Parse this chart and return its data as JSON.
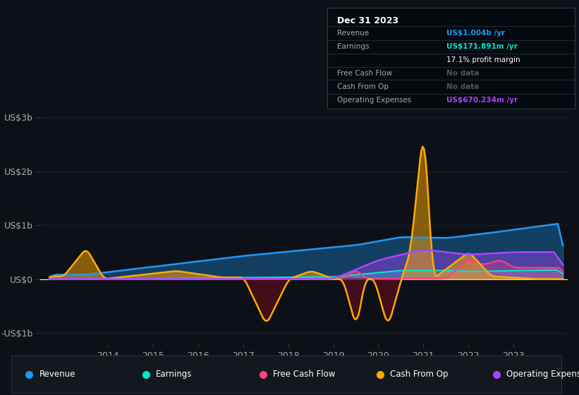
{
  "bg_color": "#0d1117",
  "plot_bg_color": "#0d1117",
  "ylim": [
    -1200000000.0,
    3200000000.0
  ],
  "xlim": [
    2012.5,
    2024.2
  ],
  "yticks": [
    -1000000000.0,
    0,
    1000000000.0,
    2000000000.0,
    3000000000.0
  ],
  "ytick_labels": [
    "-US$1b",
    "US$0",
    "US$1b",
    "US$2b",
    "US$3b"
  ],
  "xtick_years": [
    2014,
    2015,
    2016,
    2017,
    2018,
    2019,
    2020,
    2021,
    2022,
    2023
  ],
  "zero_line_color": "#ffffff",
  "grid_color": "#1e2a3a",
  "revenue_color": "#2196f3",
  "earnings_color": "#00e5cc",
  "fcf_color": "#ff4081",
  "cashfromop_color": "#ffaa00",
  "opex_color": "#aa44ff",
  "legend_bg": "#13181f",
  "legend_border": "#2a3a4a",
  "info_box": {
    "date": "Dec 31 2023",
    "revenue_label": "Revenue",
    "revenue_value": "US$1.004b /yr",
    "earnings_label": "Earnings",
    "earnings_value": "US$171.891m /yr",
    "margin_text": "17.1% profit margin",
    "fcf_label": "Free Cash Flow",
    "fcf_value": "No data",
    "cashfromop_label": "Cash From Op",
    "cashfromop_value": "No data",
    "opex_label": "Operating Expenses",
    "opex_value": "US$670.234m /yr"
  },
  "legend_items": [
    {
      "label": "Revenue",
      "color": "#2196f3"
    },
    {
      "label": "Earnings",
      "color": "#00e5cc"
    },
    {
      "label": "Free Cash Flow",
      "color": "#ff4081"
    },
    {
      "label": "Cash From Op",
      "color": "#ffaa00"
    },
    {
      "label": "Operating Expenses",
      "color": "#aa44ff"
    }
  ]
}
